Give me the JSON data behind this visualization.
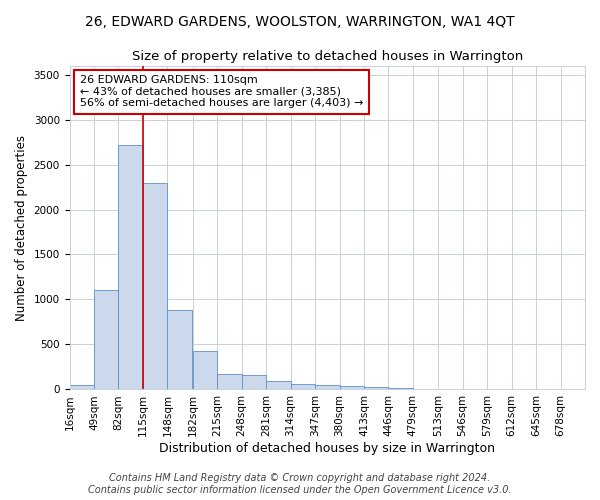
{
  "title": "26, EDWARD GARDENS, WOOLSTON, WARRINGTON, WA1 4QT",
  "subtitle": "Size of property relative to detached houses in Warrington",
  "xlabel": "Distribution of detached houses by size in Warrington",
  "ylabel": "Number of detached properties",
  "bins": [
    16,
    49,
    82,
    115,
    148,
    182,
    215,
    248,
    281,
    314,
    347,
    380,
    413,
    446,
    479,
    513,
    546,
    579,
    612,
    645,
    678
  ],
  "counts": [
    50,
    1110,
    2720,
    2290,
    880,
    430,
    170,
    165,
    95,
    65,
    50,
    40,
    25,
    20,
    10,
    10,
    5,
    5,
    5,
    0,
    0
  ],
  "bar_color": "#ccd8ec",
  "bar_edge_color": "#6090c8",
  "grid_color": "#c8d0dc",
  "bg_color": "#ffffff",
  "plot_bg_color": "#ffffff",
  "vline_x": 115,
  "vline_color": "#cc0000",
  "annotation_text": "26 EDWARD GARDENS: 110sqm\n← 43% of detached houses are smaller (3,385)\n56% of semi-detached houses are larger (4,403) →",
  "annotation_box_color": "white",
  "annotation_box_edge": "#cc0000",
  "ylim": [
    0,
    3600
  ],
  "yticks": [
    0,
    500,
    1000,
    1500,
    2000,
    2500,
    3000,
    3500
  ],
  "tick_labels": [
    "16sqm",
    "49sqm",
    "82sqm",
    "115sqm",
    "148sqm",
    "182sqm",
    "215sqm",
    "248sqm",
    "281sqm",
    "314sqm",
    "347sqm",
    "380sqm",
    "413sqm",
    "446sqm",
    "479sqm",
    "513sqm",
    "546sqm",
    "579sqm",
    "612sqm",
    "645sqm",
    "678sqm"
  ],
  "footer": "Contains HM Land Registry data © Crown copyright and database right 2024.\nContains public sector information licensed under the Open Government Licence v3.0.",
  "title_fontsize": 10,
  "subtitle_fontsize": 9.5,
  "xlabel_fontsize": 9,
  "ylabel_fontsize": 8.5,
  "tick_fontsize": 7.5,
  "footer_fontsize": 7,
  "annot_fontsize": 8
}
